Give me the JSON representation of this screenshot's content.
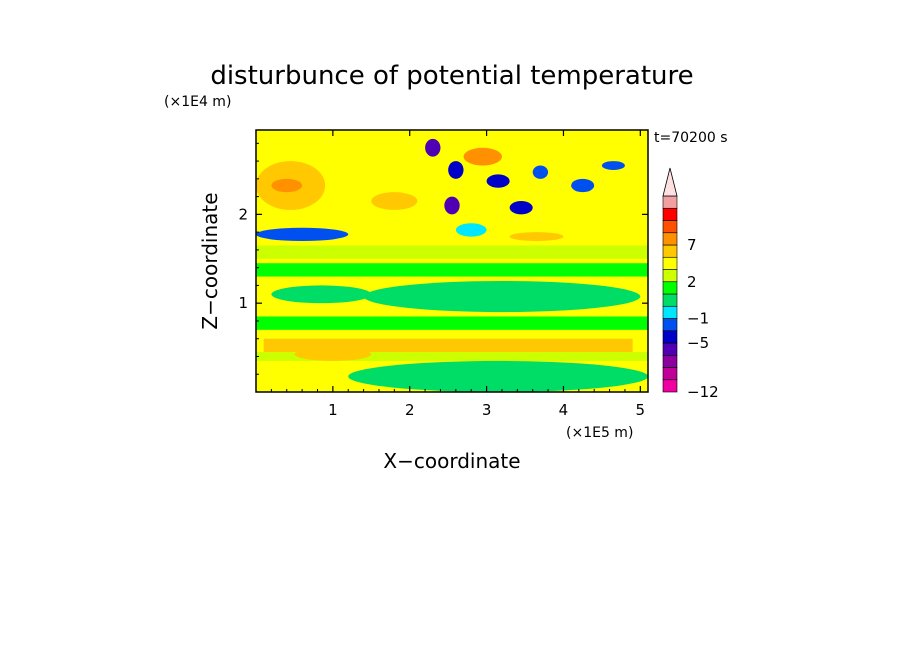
{
  "chart_data": {
    "type": "heatmap",
    "title": "disturbunce of potential temperature",
    "xlabel": "X−coordinate",
    "ylabel": "Z−coordinate",
    "x_unit": "(×1E5 m)",
    "y_unit": "(×1E4 m)",
    "time_label": "t=70200 s",
    "xlim": [
      0,
      5.1
    ],
    "ylim": [
      0,
      2.95
    ],
    "x_ticks": [
      1,
      2,
      3,
      4,
      5
    ],
    "x_tick_labels": [
      "1",
      "2",
      "3",
      "4",
      "5"
    ],
    "y_ticks": [
      1,
      2
    ],
    "y_tick_labels": [
      "1",
      "2"
    ],
    "colorbar": {
      "levels": [
        -12,
        -11,
        -9,
        -7,
        -5,
        -3,
        -1,
        0,
        1,
        2,
        3,
        5,
        7,
        9,
        11
      ],
      "colors": [
        "#f000a0",
        "#c00098",
        "#8c00a0",
        "#5000b4",
        "#0000c8",
        "#0050f0",
        "#00e6ff",
        "#00dd66",
        "#00ff00",
        "#ccff00",
        "#ffff00",
        "#ffc800",
        "#ff9000",
        "#ff5000",
        "#ff0000",
        "#f0a0a0",
        "#ffe0e0"
      ],
      "tick_values": [
        -12,
        -5,
        -1,
        2,
        7
      ],
      "tick_labels": [
        "−12",
        "−5",
        "−1",
        "2",
        "7"
      ],
      "extend": "max"
    },
    "regions": [
      {
        "x": [
          0.0,
          5.1
        ],
        "z": [
          0.0,
          2.95
        ],
        "value": 2.5
      },
      {
        "x": [
          0.0,
          5.1
        ],
        "z": [
          0.0,
          0.35
        ],
        "value": 2.5
      },
      {
        "x": [
          0.0,
          5.1
        ],
        "z": [
          0.35,
          0.45
        ],
        "value": 1.5
      },
      {
        "x": [
          0.1,
          4.9
        ],
        "z": [
          0.45,
          0.6
        ],
        "value": 3.5
      },
      {
        "x": [
          0.0,
          5.1
        ],
        "z": [
          0.7,
          0.85
        ],
        "value": 0.5
      },
      {
        "x": [
          1.4,
          5.0
        ],
        "z": [
          0.9,
          1.25
        ],
        "value": -0.5
      },
      {
        "x": [
          0.2,
          1.5
        ],
        "z": [
          1.0,
          1.2
        ],
        "value": -0.5
      },
      {
        "x": [
          0.0,
          5.1
        ],
        "z": [
          1.3,
          1.45
        ],
        "value": 0.5
      },
      {
        "x": [
          0.0,
          5.1
        ],
        "z": [
          1.5,
          1.65
        ],
        "value": 1.5
      },
      {
        "x": [
          0.0,
          1.2
        ],
        "z": [
          1.7,
          1.85
        ],
        "value": -4.0
      },
      {
        "x": [
          0.0,
          0.9
        ],
        "z": [
          2.05,
          2.6
        ],
        "value": 4.0
      },
      {
        "x": [
          0.2,
          0.6
        ],
        "z": [
          2.25,
          2.4
        ],
        "value": 6.0
      },
      {
        "x": [
          2.2,
          2.4
        ],
        "z": [
          2.65,
          2.85
        ],
        "value": -8.0
      },
      {
        "x": [
          2.5,
          2.7
        ],
        "z": [
          2.4,
          2.6
        ],
        "value": -6.0
      },
      {
        "x": [
          2.45,
          2.65
        ],
        "z": [
          2.0,
          2.2
        ],
        "value": -8.0
      },
      {
        "x": [
          3.0,
          3.3
        ],
        "z": [
          2.3,
          2.45
        ],
        "value": -6.0
      },
      {
        "x": [
          3.3,
          3.6
        ],
        "z": [
          2.0,
          2.15
        ],
        "value": -6.0
      },
      {
        "x": [
          3.6,
          3.8
        ],
        "z": [
          2.4,
          2.55
        ],
        "value": -4.0
      },
      {
        "x": [
          4.1,
          4.4
        ],
        "z": [
          2.25,
          2.4
        ],
        "value": -4.0
      },
      {
        "x": [
          3.3,
          4.0
        ],
        "z": [
          1.7,
          1.8
        ],
        "value": 4.0
      },
      {
        "x": [
          4.5,
          4.8
        ],
        "z": [
          2.5,
          2.6
        ],
        "value": -4.0
      },
      {
        "x": [
          1.5,
          2.1
        ],
        "z": [
          2.05,
          2.25
        ],
        "value": 4.0
      },
      {
        "x": [
          2.7,
          3.2
        ],
        "z": [
          2.55,
          2.75
        ],
        "value": 5.0
      },
      {
        "x": [
          2.6,
          3.0
        ],
        "z": [
          1.75,
          1.9
        ],
        "value": -1.5
      },
      {
        "x": [
          1.2,
          5.1
        ],
        "z": [
          0.0,
          0.35
        ],
        "value": -0.5
      },
      {
        "x": [
          0.5,
          1.5
        ],
        "z": [
          0.35,
          0.5
        ],
        "value": 3.5
      }
    ]
  }
}
